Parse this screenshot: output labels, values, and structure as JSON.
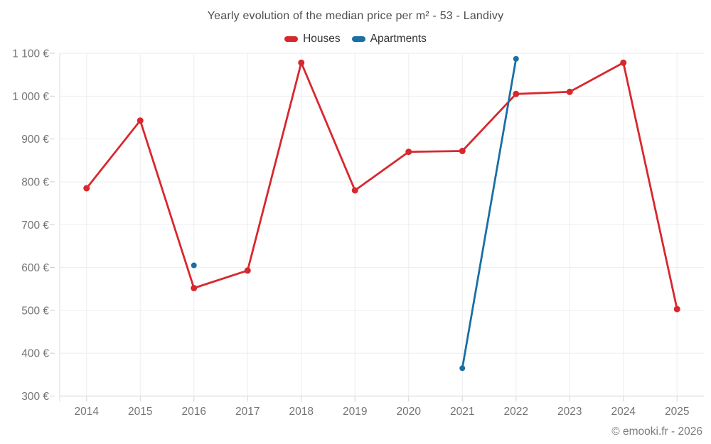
{
  "title": "Yearly evolution of the median price per m² - 53 - Landivy",
  "footer": {
    "text": "© emooki.fr - 2026"
  },
  "colors": {
    "houses": "#d7282e",
    "apartments": "#1a6fa3",
    "axis_label": "#757575",
    "grid": "#ededed",
    "axis_line": "#cfcfcf"
  },
  "chart_data": {
    "type": "line",
    "title": "Yearly evolution of the median price per m² - 53 - Landivy",
    "xlabel": "",
    "ylabel": "",
    "ylim": [
      300,
      1100
    ],
    "grid": true,
    "legend_position": "top-center",
    "categories": [
      "2014",
      "2015",
      "2016",
      "2017",
      "2018",
      "2019",
      "2020",
      "2021",
      "2022",
      "2023",
      "2024",
      "2025"
    ],
    "series": [
      {
        "name": "Houses",
        "color": "#d7282e",
        "marker_radius": 4.5,
        "values": [
          785,
          943,
          552,
          593,
          1078,
          780,
          870,
          872,
          1005,
          1010,
          1078,
          503
        ]
      },
      {
        "name": "Apartments",
        "color": "#1a6fa3",
        "marker_radius": 4,
        "values": [
          null,
          null,
          605,
          null,
          null,
          null,
          null,
          365,
          1087,
          null,
          null,
          null
        ]
      }
    ],
    "y_ticks": [
      {
        "value": 300,
        "label": "300 €"
      },
      {
        "value": 400,
        "label": "400 €"
      },
      {
        "value": 500,
        "label": "500 €"
      },
      {
        "value": 600,
        "label": "600 €"
      },
      {
        "value": 700,
        "label": "700 €"
      },
      {
        "value": 800,
        "label": "800 €"
      },
      {
        "value": 900,
        "label": "900 €"
      },
      {
        "value": 1000,
        "label": "1 000 €"
      },
      {
        "value": 1100,
        "label": "1 100 €"
      }
    ]
  }
}
